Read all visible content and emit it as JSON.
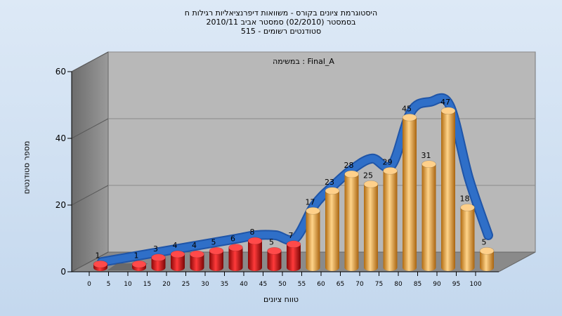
{
  "chart_data": {
    "type": "bar",
    "title_lines": [
      "היסטוגרמת ציונים בקורס - משוואות דיפרנציאליות רגילות ח",
      "בסמסטר  (02/2010)  סמסטר אביב 2010/11",
      "515 - סטודנטים רשומים"
    ],
    "annotation": "במשימה : Final_A",
    "xlabel": "טווח ציונים",
    "ylabel": "מספר סטודנטים",
    "x_ticks": [
      "0",
      "5",
      "10",
      "15",
      "20",
      "25",
      "30",
      "35",
      "40",
      "45",
      "50",
      "55",
      "60",
      "65",
      "70",
      "75",
      "80",
      "85",
      "90",
      "95",
      "100"
    ],
    "y_ticks": [
      0,
      20,
      40,
      60
    ],
    "ylim": [
      0,
      60
    ],
    "grid": true,
    "colors": {
      "fail": "#e01818",
      "pass": "#f0a030",
      "curve": "#2f6fc8"
    },
    "bars": [
      {
        "bin": 0,
        "value": 1,
        "color": "fail"
      },
      {
        "bin": 1,
        "value": 0,
        "color": "fail"
      },
      {
        "bin": 2,
        "value": 1,
        "color": "fail"
      },
      {
        "bin": 3,
        "value": 3,
        "color": "fail"
      },
      {
        "bin": 4,
        "value": 4,
        "color": "fail"
      },
      {
        "bin": 5,
        "value": 4,
        "color": "fail"
      },
      {
        "bin": 6,
        "value": 5,
        "color": "fail"
      },
      {
        "bin": 7,
        "value": 6,
        "color": "fail"
      },
      {
        "bin": 8,
        "value": 8,
        "color": "fail"
      },
      {
        "bin": 9,
        "value": 5,
        "color": "fail"
      },
      {
        "bin": 10,
        "value": 7,
        "color": "fail"
      },
      {
        "bin": 11,
        "value": 17,
        "color": "pass"
      },
      {
        "bin": 12,
        "value": 23,
        "color": "pass"
      },
      {
        "bin": 13,
        "value": 28,
        "color": "pass"
      },
      {
        "bin": 14,
        "value": 25,
        "color": "pass"
      },
      {
        "bin": 15,
        "value": 29,
        "color": "pass"
      },
      {
        "bin": 16,
        "value": 45,
        "color": "pass"
      },
      {
        "bin": 17,
        "value": 31,
        "color": "pass"
      },
      {
        "bin": 18,
        "value": 47,
        "color": "pass"
      },
      {
        "bin": 19,
        "value": 18,
        "color": "pass"
      },
      {
        "bin": 20,
        "value": 5,
        "color": "pass"
      }
    ],
    "curve_values": [
      0,
      1,
      2,
      3,
      4,
      5,
      6,
      7,
      8,
      8,
      7,
      17,
      23,
      28,
      31,
      29,
      45,
      48,
      47,
      25,
      8
    ]
  }
}
